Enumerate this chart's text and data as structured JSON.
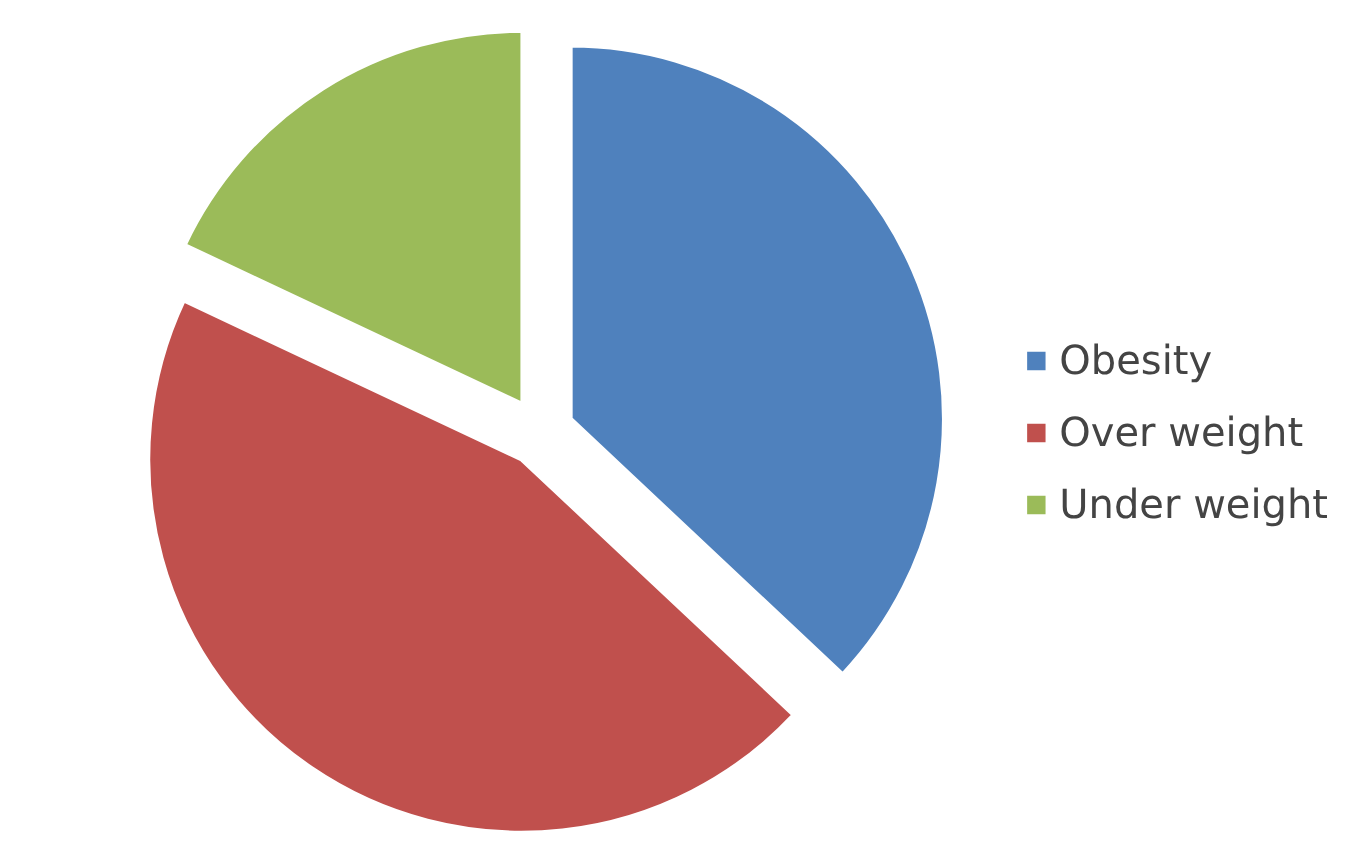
{
  "chart_data": {
    "type": "pie",
    "categories": [
      "Obesity",
      "Over weight",
      "Under weight"
    ],
    "values": [
      37,
      45,
      18
    ],
    "colors": [
      "#4f81bd",
      "#c0504d",
      "#9bbb59"
    ],
    "legend": "right"
  }
}
